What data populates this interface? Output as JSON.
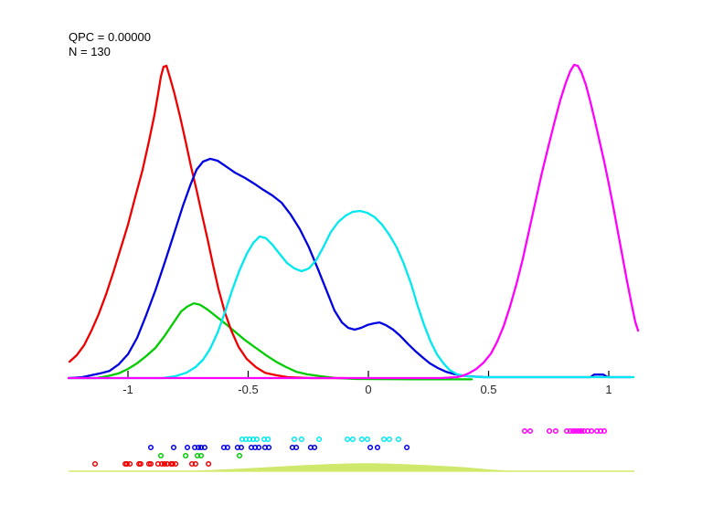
{
  "annotations": {
    "qpc": "QPC = 0.00000",
    "n": "N = 130"
  },
  "chart_data": {
    "type": "line",
    "title": "",
    "xlabel": "",
    "ylabel": "",
    "grid": false,
    "legend": "none",
    "x_axis": {
      "range": [
        -1.25,
        1.11
      ],
      "ticks": [
        -1,
        -0.5,
        0,
        0.5,
        1
      ],
      "tick_labels": [
        "-1",
        "-0.5",
        "0",
        "0.5",
        "1"
      ],
      "tick_color": "#000000",
      "label_color": "#262626"
    },
    "y_axis": {
      "range": [
        0,
        1
      ],
      "visible": false
    },
    "series": [
      {
        "name": "green-density",
        "color": "#00cc00",
        "points": [
          [
            -1.247,
            0.0
          ],
          [
            -1.133,
            0.0
          ],
          [
            -1.084,
            0.006
          ],
          [
            -1.038,
            0.015
          ],
          [
            -1.0,
            0.029
          ],
          [
            -0.962,
            0.047
          ],
          [
            -0.924,
            0.07
          ],
          [
            -0.886,
            0.096
          ],
          [
            -0.848,
            0.134
          ],
          [
            -0.81,
            0.177
          ],
          [
            -0.779,
            0.212
          ],
          [
            -0.753,
            0.228
          ],
          [
            -0.726,
            0.238
          ],
          [
            -0.7,
            0.233
          ],
          [
            -0.669,
            0.218
          ],
          [
            -0.631,
            0.195
          ],
          [
            -0.593,
            0.172
          ],
          [
            -0.551,
            0.145
          ],
          [
            -0.51,
            0.119
          ],
          [
            -0.468,
            0.096
          ],
          [
            -0.426,
            0.073
          ],
          [
            -0.384,
            0.052
          ],
          [
            -0.342,
            0.035
          ],
          [
            -0.3,
            0.02
          ],
          [
            -0.255,
            0.012
          ],
          [
            -0.202,
            0.006
          ],
          [
            -0.133,
            0.0
          ],
          [
            -0.05,
            -0.003
          ],
          [
            0.2,
            -0.004
          ],
          [
            0.43,
            -0.004
          ]
        ]
      },
      {
        "name": "red-density",
        "color": "#ee0000",
        "points": [
          [
            -1.243,
            0.052
          ],
          [
            -1.213,
            0.073
          ],
          [
            -1.182,
            0.105
          ],
          [
            -1.152,
            0.151
          ],
          [
            -1.122,
            0.203
          ],
          [
            -1.091,
            0.267
          ],
          [
            -1.061,
            0.337
          ],
          [
            -1.03,
            0.413
          ],
          [
            -1.0,
            0.488
          ],
          [
            -0.97,
            0.576
          ],
          [
            -0.939,
            0.663
          ],
          [
            -0.913,
            0.753
          ],
          [
            -0.89,
            0.837
          ],
          [
            -0.875,
            0.904
          ],
          [
            -0.863,
            0.959
          ],
          [
            -0.852,
            0.991
          ],
          [
            -0.84,
            0.994
          ],
          [
            -0.825,
            0.956
          ],
          [
            -0.806,
            0.904
          ],
          [
            -0.783,
            0.831
          ],
          [
            -0.76,
            0.753
          ],
          [
            -0.738,
            0.674
          ],
          [
            -0.715,
            0.599
          ],
          [
            -0.692,
            0.52
          ],
          [
            -0.669,
            0.442
          ],
          [
            -0.646,
            0.36
          ],
          [
            -0.624,
            0.285
          ],
          [
            -0.597,
            0.209
          ],
          [
            -0.57,
            0.151
          ],
          [
            -0.54,
            0.099
          ],
          [
            -0.506,
            0.061
          ],
          [
            -0.468,
            0.035
          ],
          [
            -0.43,
            0.017
          ],
          [
            -0.384,
            0.009
          ],
          [
            -0.335,
            0.003
          ],
          [
            -0.24,
            0.0
          ],
          [
            -0.1,
            0.0
          ]
        ]
      },
      {
        "name": "blue-density",
        "color": "#0000e0",
        "points": [
          [
            -1.247,
            0.0
          ],
          [
            -1.19,
            0.003
          ],
          [
            -1.152,
            0.009
          ],
          [
            -1.114,
            0.015
          ],
          [
            -1.076,
            0.023
          ],
          [
            -1.038,
            0.044
          ],
          [
            -1.0,
            0.076
          ],
          [
            -0.962,
            0.128
          ],
          [
            -0.924,
            0.201
          ],
          [
            -0.886,
            0.279
          ],
          [
            -0.848,
            0.366
          ],
          [
            -0.81,
            0.456
          ],
          [
            -0.772,
            0.547
          ],
          [
            -0.741,
            0.613
          ],
          [
            -0.715,
            0.663
          ],
          [
            -0.688,
            0.689
          ],
          [
            -0.658,
            0.698
          ],
          [
            -0.627,
            0.692
          ],
          [
            -0.593,
            0.674
          ],
          [
            -0.555,
            0.654
          ],
          [
            -0.513,
            0.637
          ],
          [
            -0.475,
            0.619
          ],
          [
            -0.437,
            0.599
          ],
          [
            -0.399,
            0.581
          ],
          [
            -0.361,
            0.558
          ],
          [
            -0.323,
            0.52
          ],
          [
            -0.285,
            0.474
          ],
          [
            -0.247,
            0.416
          ],
          [
            -0.209,
            0.346
          ],
          [
            -0.171,
            0.273
          ],
          [
            -0.141,
            0.215
          ],
          [
            -0.11,
            0.177
          ],
          [
            -0.084,
            0.16
          ],
          [
            -0.057,
            0.154
          ],
          [
            -0.03,
            0.16
          ],
          [
            -0.004,
            0.169
          ],
          [
            0.023,
            0.174
          ],
          [
            0.046,
            0.177
          ],
          [
            0.072,
            0.169
          ],
          [
            0.103,
            0.154
          ],
          [
            0.133,
            0.134
          ],
          [
            0.163,
            0.11
          ],
          [
            0.194,
            0.087
          ],
          [
            0.224,
            0.067
          ],
          [
            0.255,
            0.047
          ],
          [
            0.289,
            0.032
          ],
          [
            0.323,
            0.02
          ],
          [
            0.361,
            0.012
          ],
          [
            0.407,
            0.006
          ],
          [
            0.483,
            0.003
          ],
          [
            0.749,
            0.003
          ],
          [
            0.924,
            0.003
          ],
          [
            0.939,
            0.011
          ],
          [
            0.977,
            0.011
          ],
          [
            0.996,
            0.003
          ],
          [
            1.091,
            0.003
          ]
        ]
      },
      {
        "name": "cyan-density",
        "color": "#00e8f0",
        "points": [
          [
            -1.247,
            0.0
          ],
          [
            -0.924,
            0.0
          ],
          [
            -0.856,
            0.0
          ],
          [
            -0.802,
            0.006
          ],
          [
            -0.757,
            0.017
          ],
          [
            -0.719,
            0.035
          ],
          [
            -0.688,
            0.058
          ],
          [
            -0.658,
            0.093
          ],
          [
            -0.627,
            0.145
          ],
          [
            -0.597,
            0.209
          ],
          [
            -0.567,
            0.279
          ],
          [
            -0.536,
            0.343
          ],
          [
            -0.506,
            0.395
          ],
          [
            -0.479,
            0.43
          ],
          [
            -0.452,
            0.451
          ],
          [
            -0.426,
            0.445
          ],
          [
            -0.399,
            0.424
          ],
          [
            -0.369,
            0.395
          ],
          [
            -0.338,
            0.366
          ],
          [
            -0.308,
            0.349
          ],
          [
            -0.278,
            0.34
          ],
          [
            -0.247,
            0.349
          ],
          [
            -0.217,
            0.375
          ],
          [
            -0.186,
            0.419
          ],
          [
            -0.156,
            0.465
          ],
          [
            -0.125,
            0.497
          ],
          [
            -0.095,
            0.517
          ],
          [
            -0.065,
            0.529
          ],
          [
            -0.034,
            0.532
          ],
          [
            -0.004,
            0.526
          ],
          [
            0.027,
            0.512
          ],
          [
            0.057,
            0.488
          ],
          [
            0.087,
            0.456
          ],
          [
            0.118,
            0.416
          ],
          [
            0.148,
            0.363
          ],
          [
            0.179,
            0.297
          ],
          [
            0.205,
            0.23
          ],
          [
            0.232,
            0.169
          ],
          [
            0.259,
            0.116
          ],
          [
            0.285,
            0.076
          ],
          [
            0.312,
            0.047
          ],
          [
            0.338,
            0.026
          ],
          [
            0.369,
            0.012
          ],
          [
            0.407,
            0.006
          ],
          [
            0.464,
            0.003
          ],
          [
            1.103,
            0.003
          ]
        ]
      },
      {
        "name": "magenta-density",
        "color": "#ff00ff",
        "points": [
          [
            -1.247,
            0.0
          ],
          [
            -0.6,
            0.0
          ],
          [
            0.0,
            0.0
          ],
          [
            0.3,
            0.0
          ],
          [
            0.369,
            0.003
          ],
          [
            0.388,
            0.006
          ],
          [
            0.418,
            0.015
          ],
          [
            0.449,
            0.029
          ],
          [
            0.479,
            0.049
          ],
          [
            0.51,
            0.078
          ],
          [
            0.536,
            0.116
          ],
          [
            0.563,
            0.166
          ],
          [
            0.589,
            0.227
          ],
          [
            0.616,
            0.299
          ],
          [
            0.643,
            0.381
          ],
          [
            0.669,
            0.471
          ],
          [
            0.696,
            0.564
          ],
          [
            0.722,
            0.654
          ],
          [
            0.749,
            0.738
          ],
          [
            0.776,
            0.82
          ],
          [
            0.798,
            0.884
          ],
          [
            0.821,
            0.939
          ],
          [
            0.84,
            0.977
          ],
          [
            0.856,
            0.997
          ],
          [
            0.871,
            0.994
          ],
          [
            0.886,
            0.974
          ],
          [
            0.905,
            0.933
          ],
          [
            0.924,
            0.878
          ],
          [
            0.943,
            0.817
          ],
          [
            0.962,
            0.753
          ],
          [
            0.981,
            0.689
          ],
          [
            1.0,
            0.619
          ],
          [
            1.019,
            0.544
          ],
          [
            1.038,
            0.465
          ],
          [
            1.057,
            0.387
          ],
          [
            1.076,
            0.308
          ],
          [
            1.095,
            0.235
          ],
          [
            1.11,
            0.18
          ],
          [
            1.122,
            0.151
          ]
        ]
      }
    ],
    "rug": [
      {
        "name": "magenta-points",
        "color": "#ff00ff",
        "x": [
          0.65,
          0.673,
          0.753,
          0.779,
          0.825,
          0.84,
          0.852,
          0.863,
          0.875,
          0.886,
          0.897,
          0.913,
          0.928,
          0.951,
          0.966,
          0.981
        ]
      },
      {
        "name": "cyan-points",
        "color": "#00e8f0",
        "x": [
          -0.525,
          -0.51,
          -0.494,
          -0.479,
          -0.464,
          -0.433,
          -0.418,
          -0.308,
          -0.278,
          -0.205,
          -0.087,
          -0.065,
          -0.027,
          -0.004,
          0.065,
          0.087,
          0.125
        ]
      },
      {
        "name": "blue-points",
        "color": "#0000e0",
        "x": [
          -0.905,
          -0.81,
          -0.753,
          -0.722,
          -0.707,
          -0.696,
          -0.681,
          -0.601,
          -0.586,
          -0.544,
          -0.529,
          -0.487,
          -0.471,
          -0.456,
          -0.43,
          -0.414,
          -0.316,
          -0.3,
          -0.24,
          -0.224,
          0.008,
          0.038,
          0.16
        ]
      },
      {
        "name": "green-points",
        "color": "#00cc00",
        "x": [
          -0.863,
          -0.76,
          -0.711,
          -0.696,
          -0.536
        ]
      },
      {
        "name": "red-points",
        "color": "#ee0000",
        "x": [
          -1.137,
          -1.011,
          -1.004,
          -0.992,
          -0.954,
          -0.947,
          -0.913,
          -0.905,
          -0.875,
          -0.859,
          -0.848,
          -0.837,
          -0.821,
          -0.814,
          -0.802,
          -0.734,
          -0.719,
          -0.665
        ]
      }
    ],
    "summary_density": {
      "name": "combined-density",
      "fill_color": "#cfe96c",
      "line_color": "#d4ec6e",
      "baseline_range": [
        -1.247,
        1.107
      ],
      "points": [
        [
          -0.82,
          0.0
        ],
        [
          -0.74,
          0.06
        ],
        [
          -0.66,
          0.14
        ],
        [
          -0.58,
          0.24
        ],
        [
          -0.5,
          0.36
        ],
        [
          -0.42,
          0.49
        ],
        [
          -0.34,
          0.62
        ],
        [
          -0.26,
          0.74
        ],
        [
          -0.18,
          0.84
        ],
        [
          -0.1,
          0.93
        ],
        [
          -0.04,
          0.97
        ],
        [
          0.02,
          0.97
        ],
        [
          0.08,
          0.93
        ],
        [
          0.16,
          0.85
        ],
        [
          0.24,
          0.74
        ],
        [
          0.32,
          0.62
        ],
        [
          0.4,
          0.49
        ],
        [
          0.46,
          0.33
        ],
        [
          0.52,
          0.18
        ],
        [
          0.58,
          0.08
        ],
        [
          0.64,
          0.02
        ],
        [
          0.7,
          0.0
        ]
      ]
    }
  }
}
